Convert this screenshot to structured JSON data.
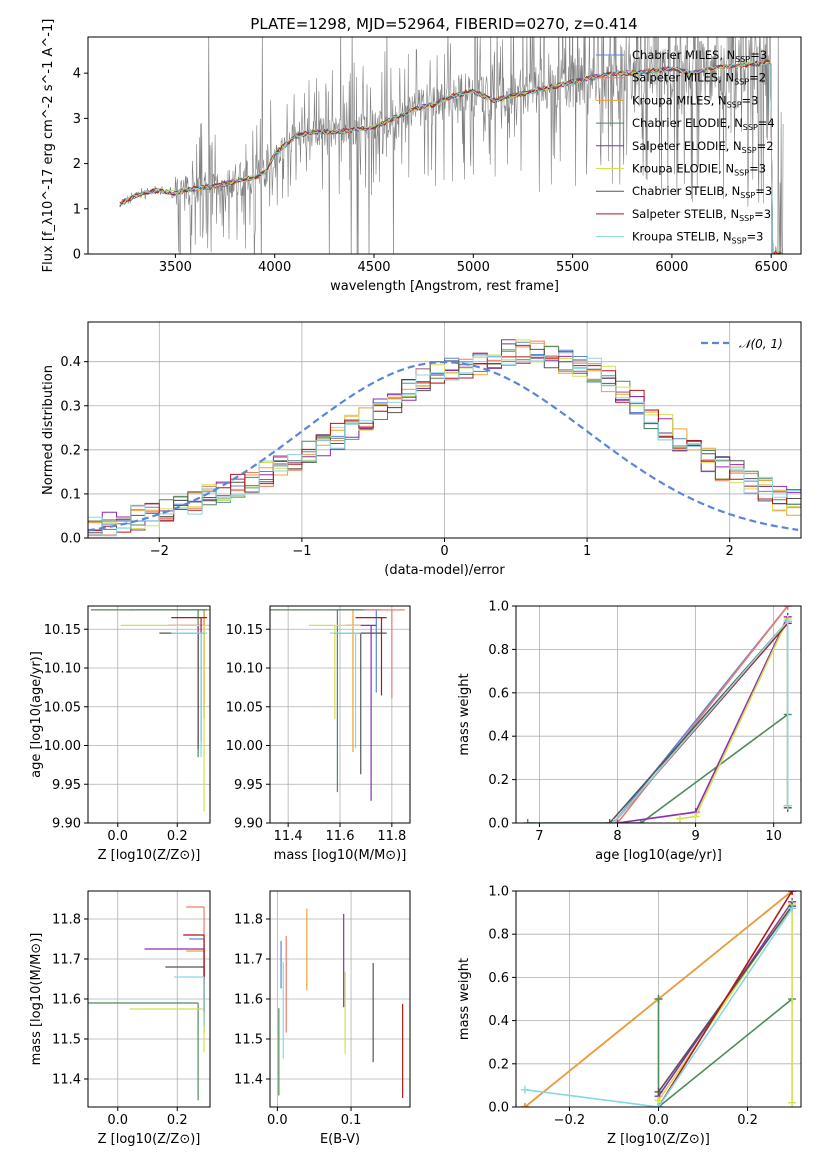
{
  "figure_title": "PLATE=1298, MJD=52964, FIBERID=0270, z=0.414",
  "colors": {
    "chabrier_miles": "#5b86d8",
    "salpeter_miles": "#f07a6a",
    "kroupa_miles": "#f0a030",
    "chabrier_elodie": "#4f8a5a",
    "salpeter_elodie": "#8e2db0",
    "kroupa_elodie": "#d4e050",
    "chabrier_stelib": "#555555",
    "salpeter_stelib": "#b01818",
    "kroupa_stelib": "#88d8e0",
    "data": "#808080",
    "normal": "#5b86d8",
    "grid": "#b0b0b0"
  },
  "chart_data": [
    {
      "type": "line",
      "id": "spectrum",
      "title": "PLATE=1298, MJD=52964, FIBERID=0270, z=0.414",
      "xlabel": "wavelength [Angstrom, rest frame]",
      "ylabel": "Flux [f_λ10^-17 erg cm^-2 s^-1 A^-1]",
      "xlim": [
        3060,
        6650
      ],
      "ylim": [
        0,
        4.8
      ],
      "xticks": [
        "3500",
        "4000",
        "4500",
        "5000",
        "5500",
        "6000",
        "6500"
      ],
      "yticks": [
        "0",
        "1",
        "2",
        "3",
        "4"
      ],
      "grid": false,
      "legend_position": "top-right",
      "legend": [
        "Chabrier MILES, N_SSP=3",
        "Salpeter MILES, N_SSP=2",
        "Kroupa MILES, N_SSP=3",
        "Chabrier ELODIE, N_SSP=4",
        "Salpeter ELODIE, N_SSP=2",
        "Kroupa ELODIE, N_SSP=3",
        "Chabrier STELIB, N_SSP=3",
        "Salpeter STELIB, N_SSP=3",
        "Kroupa STELIB, N_SSP=3"
      ],
      "continuum": {
        "x": [
          3220,
          3300,
          3400,
          3500,
          3600,
          3700,
          3800,
          3900,
          3950,
          4000,
          4100,
          4200,
          4300,
          4400,
          4500,
          4600,
          4700,
          4800,
          4900,
          5000,
          5100,
          5200,
          5300,
          5400,
          5500,
          5600,
          5700,
          5800,
          5900,
          6000,
          6100,
          6200,
          6300,
          6400,
          6500
        ],
        "y": [
          1.1,
          1.3,
          1.4,
          1.35,
          1.45,
          1.5,
          1.6,
          1.7,
          1.8,
          2.2,
          2.6,
          2.7,
          2.7,
          2.75,
          2.8,
          3.0,
          3.2,
          3.3,
          3.5,
          3.6,
          3.4,
          3.5,
          3.6,
          3.7,
          3.8,
          3.9,
          4.0,
          4.0,
          4.05,
          4.1,
          4.0,
          4.1,
          4.15,
          4.2,
          4.25
        ]
      },
      "data_noise": "grey observed spectrum with strong noise increasing toward red; noise spikes reach from 0 to above 4.8"
    },
    {
      "type": "line",
      "id": "residuals",
      "xlabel": "(data-model)/error",
      "ylabel": "Normed distribution",
      "xlim": [
        -2.5,
        2.5
      ],
      "ylim": [
        0,
        0.49
      ],
      "xticks": [
        "−2",
        "−1",
        "0",
        "1",
        "2"
      ],
      "yticks": [
        "0.0",
        "0.1",
        "0.2",
        "0.3",
        "0.4"
      ],
      "grid": true,
      "legend_position": "top-right",
      "legend": [
        "𝒩(0, 1)"
      ],
      "bin_width": 0.1,
      "histogram_center": [
        0.02,
        0.03,
        0.04,
        0.045,
        0.05,
        0.06,
        0.07,
        0.08,
        0.095,
        0.11,
        0.12,
        0.13,
        0.145,
        0.16,
        0.165,
        0.19,
        0.21,
        0.23,
        0.25,
        0.27,
        0.29,
        0.31,
        0.33,
        0.36,
        0.37,
        0.38,
        0.39,
        0.4,
        0.41,
        0.42,
        0.42,
        0.42,
        0.41,
        0.4,
        0.39,
        0.38,
        0.36,
        0.33,
        0.31,
        0.27,
        0.25,
        0.22,
        0.2,
        0.18,
        0.16,
        0.15,
        0.13,
        0.11,
        0.09,
        0.08
      ]
    },
    {
      "type": "scatter",
      "id": "age-vs-Z",
      "xlabel": "Z [log10(Z/Z⊙)]",
      "ylabel": "age [log10(age/yr)]",
      "xlim": [
        -0.1,
        0.31
      ],
      "ylim": [
        9.9,
        10.18
      ],
      "xticks": [
        "0.0",
        "0.2"
      ],
      "yticks": [
        "9.90",
        "9.95",
        "10.00",
        "10.05",
        "10.10",
        "10.15"
      ],
      "grid": true,
      "points": [
        {
          "x": 0.29,
          "y": 10.175,
          "xerr": [
            0.25,
            0.02
          ],
          "yerr": [
            0.14,
            0.0
          ]
        },
        {
          "x": 0.29,
          "y": 10.175,
          "xerr": [
            0.1,
            0.02
          ],
          "yerr": [
            0.12,
            0.0
          ]
        },
        {
          "x": 0.29,
          "y": 10.175,
          "xerr": [
            0.1,
            0.02
          ],
          "yerr": [
            0.14,
            0.0
          ]
        },
        {
          "x": 0.27,
          "y": 10.175,
          "xerr": [
            0.36,
            0.03
          ],
          "yerr": [
            0.19,
            0.0
          ]
        },
        {
          "x": 0.27,
          "y": 10.155,
          "xerr": [
            0.1,
            0.02
          ],
          "yerr": [
            0.15,
            0.0
          ]
        },
        {
          "x": 0.29,
          "y": 10.155,
          "xerr": [
            0.28,
            0.02
          ],
          "yerr": [
            0.24,
            0.0
          ]
        },
        {
          "x": 0.27,
          "y": 10.145,
          "xerr": [
            0.13,
            0.02
          ],
          "yerr": [
            0.15,
            0.0
          ]
        },
        {
          "x": 0.28,
          "y": 10.165,
          "xerr": [
            0.1,
            0.02
          ],
          "yerr": [
            0.16,
            0.0
          ]
        },
        {
          "x": 0.28,
          "y": 10.145,
          "xerr": [
            0.1,
            0.02
          ],
          "yerr": [
            0.16,
            0.0
          ]
        }
      ]
    },
    {
      "type": "scatter",
      "id": "age-vs-mass",
      "xlabel": "mass [log10(M/M⊙)]",
      "ylabel": "",
      "xlim": [
        11.33,
        11.87
      ],
      "ylim": [
        9.9,
        10.18
      ],
      "xticks": [
        "11.4",
        "11.6",
        "11.8"
      ],
      "yticks": [
        "9.90",
        "9.95",
        "10.00",
        "10.05",
        "10.10",
        "10.15"
      ],
      "grid": true,
      "points": [
        {
          "x": 11.74,
          "y": 10.175,
          "xerr": [
            0.15,
            0.02
          ]
        },
        {
          "x": 11.8,
          "y": 10.175,
          "xerr": [
            0.1,
            0.05
          ]
        },
        {
          "x": 11.65,
          "y": 10.175,
          "xerr": [
            0.1,
            0.02
          ]
        },
        {
          "x": 11.59,
          "y": 10.175,
          "xerr": [
            0.27,
            0.1
          ]
        },
        {
          "x": 11.72,
          "y": 10.155,
          "xerr": [
            0.1,
            0.02
          ]
        },
        {
          "x": 11.58,
          "y": 10.155,
          "xerr": [
            0.1,
            0.1
          ]
        },
        {
          "x": 11.68,
          "y": 10.145,
          "xerr": [
            0.1,
            0.1
          ]
        },
        {
          "x": 11.76,
          "y": 10.165,
          "xerr": [
            0.1,
            0.02
          ]
        },
        {
          "x": 11.66,
          "y": 10.145,
          "xerr": [
            0.1,
            0.02
          ]
        }
      ]
    },
    {
      "type": "line",
      "id": "mass-weight-vs-age",
      "xlabel": "age [log10(age/yr)]",
      "ylabel": "mass weight",
      "xlim": [
        6.7,
        10.35
      ],
      "ylim": [
        0,
        1.0
      ],
      "xticks": [
        "7",
        "8",
        "9",
        "10"
      ],
      "yticks": [
        "0.0",
        "0.2",
        "0.4",
        "0.6",
        "0.8",
        "1.0"
      ],
      "grid": true,
      "series": [
        {
          "x": [
            7.95,
            10.18
          ],
          "y": [
            0.0,
            1.0
          ]
        },
        {
          "x": [
            8.0,
            10.18
          ],
          "y": [
            0.0,
            1.0
          ]
        },
        {
          "x": [
            7.95,
            10.18,
            10.18
          ],
          "y": [
            0.0,
            0.93,
            0.08
          ]
        },
        {
          "x": [
            6.85,
            8.3,
            10.18
          ],
          "y": [
            0.0,
            0.0,
            0.5
          ]
        },
        {
          "x": [
            8.0,
            9.0,
            10.18
          ],
          "y": [
            0.0,
            0.05,
            0.95
          ]
        },
        {
          "x": [
            8.8,
            9.0,
            10.18
          ],
          "y": [
            0.02,
            0.03,
            0.94
          ]
        },
        {
          "x": [
            7.9,
            10.18,
            10.18
          ],
          "y": [
            0.0,
            0.93,
            0.07
          ]
        },
        {
          "x": [
            7.95,
            10.18
          ],
          "y": [
            0.0,
            0.92
          ]
        },
        {
          "x": [
            7.95,
            10.18,
            10.18
          ],
          "y": [
            0.0,
            0.93,
            0.08
          ]
        }
      ]
    },
    {
      "type": "scatter",
      "id": "mass-vs-Z",
      "xlabel": "Z [log10(Z/Z⊙)]",
      "ylabel": "mass [log10(M/M⊙)]",
      "xlim": [
        -0.1,
        0.31
      ],
      "ylim": [
        11.33,
        11.87
      ],
      "xticks": [
        "0.0",
        "0.2"
      ],
      "yticks": [
        "11.4",
        "11.5",
        "11.6",
        "11.7",
        "11.8"
      ],
      "grid": true,
      "points": [
        {
          "x": 0.29,
          "y": 11.75,
          "xerr": [
            0.05,
            0.0
          ]
        },
        {
          "x": 0.29,
          "y": 11.83,
          "xerr": [
            0.06,
            0.0
          ]
        },
        {
          "x": 0.29,
          "y": 11.72,
          "xerr": [
            0.06,
            0.0
          ]
        },
        {
          "x": 0.27,
          "y": 11.59,
          "xerr": [
            0.37,
            0.0
          ]
        },
        {
          "x": 0.29,
          "y": 11.725,
          "xerr": [
            0.2,
            0.0
          ]
        },
        {
          "x": 0.29,
          "y": 11.575,
          "xerr": [
            0.25,
            0.0
          ]
        },
        {
          "x": 0.29,
          "y": 11.68,
          "xerr": [
            0.13,
            0.0
          ]
        },
        {
          "x": 0.29,
          "y": 11.76,
          "xerr": [
            0.07,
            0.0
          ]
        },
        {
          "x": 0.29,
          "y": 11.655,
          "xerr": [
            0.1,
            0.0
          ]
        }
      ]
    },
    {
      "type": "scatter",
      "id": "mass-vs-EBV",
      "xlabel": "E(B-V)",
      "ylabel": "",
      "xlim": [
        -0.01,
        0.18
      ],
      "ylim": [
        11.33,
        11.87
      ],
      "xticks": [
        "0.0",
        "0.1"
      ],
      "yticks": [
        "11.4",
        "11.5",
        "11.6",
        "11.7",
        "11.8"
      ],
      "grid": true,
      "points": [
        {
          "x": 0.005,
          "y": 11.68
        },
        {
          "x": 0.012,
          "y": 11.68
        },
        {
          "x": 0.04,
          "y": 11.75
        },
        {
          "x": 0.002,
          "y": 11.5
        },
        {
          "x": 0.09,
          "y": 11.72
        },
        {
          "x": 0.092,
          "y": 11.62
        },
        {
          "x": 0.13,
          "y": 11.6
        },
        {
          "x": 0.17,
          "y": 11.5
        },
        {
          "x": 0.008,
          "y": 11.6
        }
      ]
    },
    {
      "type": "line",
      "id": "mass-weight-vs-Z",
      "xlabel": "Z [log10(Z/Z⊙)]",
      "ylabel": "mass weight",
      "xlim": [
        -0.32,
        0.32
      ],
      "ylim": [
        0,
        1.0
      ],
      "xticks": [
        "−0.2",
        "0.0",
        "0.2"
      ],
      "yticks": [
        "0.0",
        "0.2",
        "0.4",
        "0.6",
        "0.8",
        "1.0"
      ],
      "grid": true,
      "series": [
        {
          "x": [
            -0.3,
            0.0,
            0.3
          ],
          "y": [
            0.0,
            0.5,
            1.0
          ]
        },
        {
          "x": [
            -0.3,
            0.3
          ],
          "y": [
            0.0,
            1.0
          ]
        },
        {
          "x": [
            -0.3,
            0.3
          ],
          "y": [
            0.0,
            1.0
          ]
        },
        {
          "x": [
            0.0,
            0.0,
            0.3
          ],
          "y": [
            0.5,
            0.0,
            0.5
          ]
        },
        {
          "x": [
            0.0,
            0.3
          ],
          "y": [
            0.05,
            0.95
          ]
        },
        {
          "x": [
            0.0,
            0.3,
            0.3
          ],
          "y": [
            0.03,
            0.94,
            0.02
          ]
        },
        {
          "x": [
            0.0,
            0.3
          ],
          "y": [
            0.07,
            0.93
          ]
        },
        {
          "x": [
            0.0,
            0.3
          ],
          "y": [
            0.0,
            1.0
          ]
        },
        {
          "x": [
            -0.3,
            0.0,
            0.3
          ],
          "y": [
            0.08,
            0.0,
            0.92
          ]
        }
      ]
    }
  ]
}
